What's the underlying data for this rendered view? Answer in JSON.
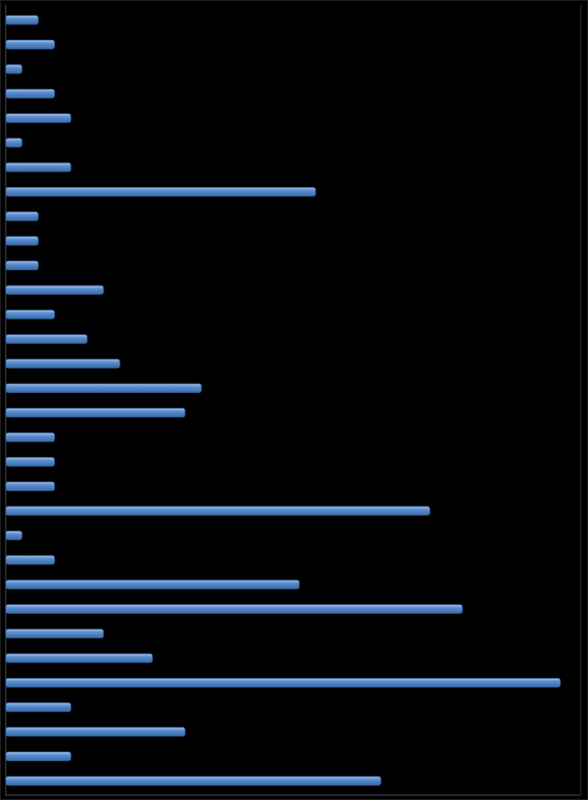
{
  "chart_data": {
    "type": "barh",
    "categories": [
      null,
      null,
      null,
      null,
      null,
      null,
      null,
      null,
      null,
      null,
      null,
      null,
      null,
      null,
      null,
      null,
      null,
      null,
      null,
      null,
      null,
      null,
      null,
      null,
      null,
      null,
      null,
      null,
      null,
      null,
      null,
      null
    ],
    "values": [
      2,
      3,
      1,
      3,
      4,
      1,
      4,
      19,
      2,
      2,
      2,
      6,
      3,
      5,
      7,
      12,
      11,
      3,
      3,
      3,
      26,
      1,
      3,
      18,
      28,
      6,
      9,
      34,
      4,
      11,
      4,
      23
    ],
    "color": "#4f81bd",
    "xlim": [
      0,
      35
    ]
  }
}
